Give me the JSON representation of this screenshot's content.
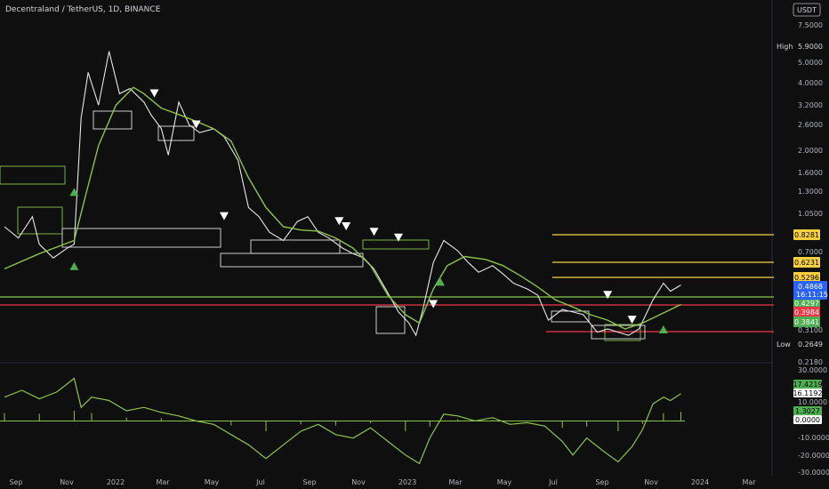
{
  "chart_data": {
    "type": "line",
    "title": "Decentraland / TetherUS, 1D, BINANCE",
    "currency_button": "USDT",
    "x_labels": [
      "Sep",
      "Nov",
      "2022",
      "Mar",
      "May",
      "Jul",
      "Sep",
      "Nov",
      "2023",
      "Mar",
      "May",
      "Jul",
      "Sep",
      "Nov",
      "2024",
      "Mar"
    ],
    "y_scale": "log",
    "y_ticks": [
      "7.5000",
      "5.0000",
      "4.0000",
      "3.2000",
      "2.6000",
      "2.0000",
      "1.6000",
      "1.3000",
      "1.0500",
      "0.7000",
      "0.3100",
      "0.2180"
    ],
    "high": {
      "label": "High",
      "value": "5.9000"
    },
    "low": {
      "label": "Low",
      "value": "0.2649"
    },
    "current_price": {
      "value": "0.4868",
      "countdown": "16:11:15"
    },
    "level_tags": [
      {
        "value": "0.8281",
        "color": "#f7d13d"
      },
      {
        "value": "0.6231",
        "color": "#f7d13d"
      },
      {
        "value": "0.5296",
        "color": "#f7d13d"
      },
      {
        "value": "0.4297",
        "color": "#4caf50"
      },
      {
        "value": "0.3984",
        "color": "#f23645"
      },
      {
        "value": "0.3841",
        "color": "#4caf50"
      }
    ],
    "indicator_ticks": [
      "30.0000",
      "10.0000",
      "-10.0000",
      "-20.0000",
      "-30.0000"
    ],
    "indicator_tags": [
      {
        "value": "17.4219",
        "style": "green"
      },
      {
        "value": "16.1192",
        "style": "white"
      },
      {
        "value": "1.3027",
        "style": "green"
      },
      {
        "value": "0.0000",
        "style": "white"
      }
    ],
    "price_series": [
      {
        "t": 0,
        "v": 0.9
      },
      {
        "t": 0.4,
        "v": 0.8
      },
      {
        "t": 0.8,
        "v": 1.0
      },
      {
        "t": 1.0,
        "v": 0.75
      },
      {
        "t": 1.4,
        "v": 0.65
      },
      {
        "t": 1.8,
        "v": 0.72
      },
      {
        "t": 2.0,
        "v": 0.75
      },
      {
        "t": 2.2,
        "v": 2.8
      },
      {
        "t": 2.4,
        "v": 4.5
      },
      {
        "t": 2.7,
        "v": 3.2
      },
      {
        "t": 3.0,
        "v": 5.6
      },
      {
        "t": 3.3,
        "v": 3.6
      },
      {
        "t": 3.6,
        "v": 3.8
      },
      {
        "t": 4.0,
        "v": 3.3
      },
      {
        "t": 4.2,
        "v": 2.9
      },
      {
        "t": 4.5,
        "v": 2.5
      },
      {
        "t": 4.7,
        "v": 1.9
      },
      {
        "t": 5.0,
        "v": 3.3
      },
      {
        "t": 5.3,
        "v": 2.6
      },
      {
        "t": 5.6,
        "v": 2.4
      },
      {
        "t": 6.0,
        "v": 2.5
      },
      {
        "t": 6.3,
        "v": 2.3
      },
      {
        "t": 6.7,
        "v": 1.8
      },
      {
        "t": 7.0,
        "v": 1.1
      },
      {
        "t": 7.3,
        "v": 1.0
      },
      {
        "t": 7.6,
        "v": 0.85
      },
      {
        "t": 8.0,
        "v": 0.78
      },
      {
        "t": 8.4,
        "v": 0.95
      },
      {
        "t": 8.7,
        "v": 1.0
      },
      {
        "t": 9.0,
        "v": 0.85
      },
      {
        "t": 9.3,
        "v": 0.8
      },
      {
        "t": 9.7,
        "v": 0.72
      },
      {
        "t": 10.0,
        "v": 0.68
      },
      {
        "t": 10.3,
        "v": 0.65
      },
      {
        "t": 10.6,
        "v": 0.58
      },
      {
        "t": 11.0,
        "v": 0.45
      },
      {
        "t": 11.3,
        "v": 0.37
      },
      {
        "t": 11.6,
        "v": 0.33
      },
      {
        "t": 11.8,
        "v": 0.29
      },
      {
        "t": 12.0,
        "v": 0.38
      },
      {
        "t": 12.3,
        "v": 0.62
      },
      {
        "t": 12.6,
        "v": 0.78
      },
      {
        "t": 13.0,
        "v": 0.7
      },
      {
        "t": 13.3,
        "v": 0.62
      },
      {
        "t": 13.6,
        "v": 0.56
      },
      {
        "t": 14.0,
        "v": 0.6
      },
      {
        "t": 14.3,
        "v": 0.55
      },
      {
        "t": 14.6,
        "v": 0.5
      },
      {
        "t": 15.0,
        "v": 0.47
      },
      {
        "t": 15.3,
        "v": 0.44
      },
      {
        "t": 15.6,
        "v": 0.34
      },
      {
        "t": 16.0,
        "v": 0.38
      },
      {
        "t": 16.3,
        "v": 0.37
      },
      {
        "t": 16.6,
        "v": 0.36
      },
      {
        "t": 17.0,
        "v": 0.3
      },
      {
        "t": 17.3,
        "v": 0.31
      },
      {
        "t": 17.6,
        "v": 0.3
      },
      {
        "t": 17.9,
        "v": 0.29
      },
      {
        "t": 18.2,
        "v": 0.31
      },
      {
        "t": 18.6,
        "v": 0.42
      },
      {
        "t": 18.9,
        "v": 0.5
      },
      {
        "t": 19.1,
        "v": 0.46
      },
      {
        "t": 19.4,
        "v": 0.49
      }
    ],
    "ma_series": [
      {
        "t": 0,
        "v": 0.58
      },
      {
        "t": 1.0,
        "v": 0.68
      },
      {
        "t": 2.0,
        "v": 0.78
      },
      {
        "t": 2.3,
        "v": 1.2
      },
      {
        "t": 2.7,
        "v": 2.1
      },
      {
        "t": 3.2,
        "v": 3.2
      },
      {
        "t": 3.7,
        "v": 3.85
      },
      {
        "t": 4.0,
        "v": 3.6
      },
      {
        "t": 4.5,
        "v": 3.1
      },
      {
        "t": 5.0,
        "v": 2.9
      },
      {
        "t": 5.5,
        "v": 2.7
      },
      {
        "t": 6.0,
        "v": 2.5
      },
      {
        "t": 6.5,
        "v": 2.2
      },
      {
        "t": 7.0,
        "v": 1.5
      },
      {
        "t": 7.5,
        "v": 1.1
      },
      {
        "t": 8.0,
        "v": 0.9
      },
      {
        "t": 8.5,
        "v": 0.87
      },
      {
        "t": 9.0,
        "v": 0.86
      },
      {
        "t": 9.5,
        "v": 0.8
      },
      {
        "t": 10.0,
        "v": 0.72
      },
      {
        "t": 10.5,
        "v": 0.6
      },
      {
        "t": 11.0,
        "v": 0.44
      },
      {
        "t": 11.5,
        "v": 0.36
      },
      {
        "t": 11.9,
        "v": 0.33
      },
      {
        "t": 12.3,
        "v": 0.47
      },
      {
        "t": 12.7,
        "v": 0.6
      },
      {
        "t": 13.2,
        "v": 0.66
      },
      {
        "t": 13.8,
        "v": 0.64
      },
      {
        "t": 14.3,
        "v": 0.6
      },
      {
        "t": 14.8,
        "v": 0.54
      },
      {
        "t": 15.3,
        "v": 0.48
      },
      {
        "t": 15.8,
        "v": 0.42
      },
      {
        "t": 16.3,
        "v": 0.39
      },
      {
        "t": 16.8,
        "v": 0.36
      },
      {
        "t": 17.3,
        "v": 0.34
      },
      {
        "t": 17.8,
        "v": 0.31
      },
      {
        "t": 18.3,
        "v": 0.33
      },
      {
        "t": 18.8,
        "v": 0.36
      },
      {
        "t": 19.4,
        "v": 0.4
      }
    ],
    "osc_series": [
      {
        "t": 0,
        "v": 14
      },
      {
        "t": 0.5,
        "v": 18
      },
      {
        "t": 1.0,
        "v": 13
      },
      {
        "t": 1.5,
        "v": 17
      },
      {
        "t": 2.0,
        "v": 25
      },
      {
        "t": 2.2,
        "v": 8
      },
      {
        "t": 2.5,
        "v": 14
      },
      {
        "t": 3.0,
        "v": 12
      },
      {
        "t": 3.5,
        "v": 6
      },
      {
        "t": 4.0,
        "v": 8
      },
      {
        "t": 4.5,
        "v": 5
      },
      {
        "t": 5.0,
        "v": 3
      },
      {
        "t": 5.5,
        "v": 0
      },
      {
        "t": 6.0,
        "v": -2
      },
      {
        "t": 6.5,
        "v": -8
      },
      {
        "t": 7.0,
        "v": -14
      },
      {
        "t": 7.5,
        "v": -22
      },
      {
        "t": 8.0,
        "v": -14
      },
      {
        "t": 8.5,
        "v": -6
      },
      {
        "t": 9.0,
        "v": -2
      },
      {
        "t": 9.5,
        "v": -8
      },
      {
        "t": 10.0,
        "v": -10
      },
      {
        "t": 10.5,
        "v": -4
      },
      {
        "t": 11.0,
        "v": -12
      },
      {
        "t": 11.5,
        "v": -20
      },
      {
        "t": 11.9,
        "v": -25
      },
      {
        "t": 12.2,
        "v": -10
      },
      {
        "t": 12.6,
        "v": 4
      },
      {
        "t": 13.0,
        "v": 3
      },
      {
        "t": 13.5,
        "v": 0
      },
      {
        "t": 14.0,
        "v": 2
      },
      {
        "t": 14.5,
        "v": -2
      },
      {
        "t": 15.0,
        "v": -1
      },
      {
        "t": 15.5,
        "v": -3
      },
      {
        "t": 16.0,
        "v": -12
      },
      {
        "t": 16.3,
        "v": -20
      },
      {
        "t": 16.7,
        "v": -10
      },
      {
        "t": 17.2,
        "v": -18
      },
      {
        "t": 17.6,
        "v": -24
      },
      {
        "t": 18.0,
        "v": -15
      },
      {
        "t": 18.3,
        "v": -5
      },
      {
        "t": 18.6,
        "v": 10
      },
      {
        "t": 18.9,
        "v": 14
      },
      {
        "t": 19.1,
        "v": 12
      },
      {
        "t": 19.4,
        "v": 16
      }
    ],
    "signal_markers": [
      {
        "t": 2.0,
        "v": 1.3,
        "dir": "up"
      },
      {
        "t": 2.0,
        "v": 0.6,
        "dir": "up"
      },
      {
        "t": 4.3,
        "v": 3.6,
        "dir": "down"
      },
      {
        "t": 5.5,
        "v": 2.6,
        "dir": "down"
      },
      {
        "t": 6.3,
        "v": 1.0,
        "dir": "down"
      },
      {
        "t": 9.6,
        "v": 0.95,
        "dir": "down"
      },
      {
        "t": 9.8,
        "v": 0.9,
        "dir": "down"
      },
      {
        "t": 10.6,
        "v": 0.85,
        "dir": "down"
      },
      {
        "t": 11.3,
        "v": 0.8,
        "dir": "down"
      },
      {
        "t": 12.3,
        "v": 0.4,
        "dir": "down"
      },
      {
        "t": 12.5,
        "v": 0.51,
        "dir": "up"
      },
      {
        "t": 17.3,
        "v": 0.44,
        "dir": "down"
      },
      {
        "t": 18.0,
        "v": 0.34,
        "dir": "down"
      },
      {
        "t": 18.9,
        "v": 0.31,
        "dir": "up"
      }
    ]
  }
}
